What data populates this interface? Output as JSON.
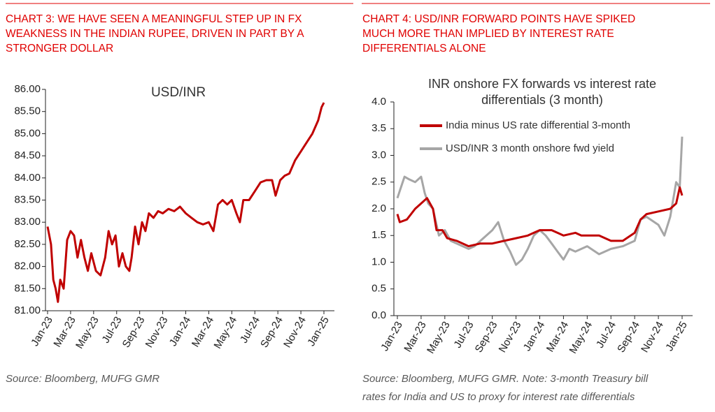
{
  "panels": [
    {
      "heading": [
        "CHART 3: WE HAVE SEEN A MEANINGFUL STEP UP IN FX",
        "WEAKNESS IN THE INDIAN RUPEE, DRIVEN IN PART BY A",
        "STRONGER DOLLAR"
      ],
      "source": [
        "Source: Bloomberg, MUFG GMR"
      ]
    },
    {
      "heading": [
        "CHART 4: USD/INR FORWARD POINTS HAVE SPIKED",
        "MUCH MORE THAN IMPLIED BY INTEREST RATE",
        "DIFFERENTIALS ALONE"
      ],
      "source": [
        "Source: Bloomberg, MUFG GMR.  Note: 3-month Treasury bill",
        "rates for India and US to proxy for interest rate differentials"
      ]
    }
  ],
  "chart_data": [
    {
      "type": "line",
      "title": [
        "USD/INR"
      ],
      "xlim": [
        0,
        24
      ],
      "ylim": [
        81,
        86
      ],
      "xticks": [
        {
          "value": 0,
          "label": "Jan-23"
        },
        {
          "value": 2,
          "label": "Mar-23"
        },
        {
          "value": 4,
          "label": "May-23"
        },
        {
          "value": 6,
          "label": "Jul-23"
        },
        {
          "value": 8,
          "label": "Sep-23"
        },
        {
          "value": 10,
          "label": "Nov-23"
        },
        {
          "value": 12,
          "label": "Jan-24"
        },
        {
          "value": 14,
          "label": "Mar-24"
        },
        {
          "value": 16,
          "label": "May-24"
        },
        {
          "value": 18,
          "label": "Jul-24"
        },
        {
          "value": 20,
          "label": "Sep-24"
        },
        {
          "value": 22,
          "label": "Nov-24"
        },
        {
          "value": 24,
          "label": "Jan-25"
        }
      ],
      "yticks": [
        {
          "value": 81,
          "label": "81.00"
        },
        {
          "value": 81.5,
          "label": "81.50"
        },
        {
          "value": 82,
          "label": "82.00"
        },
        {
          "value": 82.5,
          "label": "82.50"
        },
        {
          "value": 83,
          "label": "83.00"
        },
        {
          "value": 83.5,
          "label": "83.50"
        },
        {
          "value": 84,
          "label": "84.00"
        },
        {
          "value": 84.5,
          "label": "84.50"
        },
        {
          "value": 85,
          "label": "85.00"
        },
        {
          "value": 85.5,
          "label": "85.50"
        },
        {
          "value": 86,
          "label": "86.00"
        }
      ],
      "series": [
        {
          "color": "#c00000",
          "x": [
            0,
            0.3,
            0.5,
            0.7,
            0.9,
            1.1,
            1.4,
            1.7,
            2.0,
            2.3,
            2.6,
            2.9,
            3.2,
            3.5,
            3.8,
            4.2,
            4.6,
            5.0,
            5.3,
            5.6,
            5.9,
            6.2,
            6.5,
            6.8,
            7.1,
            7.3,
            7.6,
            7.9,
            8.2,
            8.5,
            8.8,
            9.2,
            9.6,
            10,
            10.5,
            11,
            11.5,
            12,
            12.5,
            13,
            13.5,
            14,
            14.4,
            14.8,
            15.2,
            15.6,
            16,
            16.4,
            16.7,
            17,
            17.5,
            18,
            18.5,
            19,
            19.5,
            19.8,
            20.2,
            20.6,
            21,
            21.5,
            22,
            22.5,
            23,
            23.5,
            23.8,
            24
          ],
          "values": [
            82.9,
            82.5,
            81.7,
            81.5,
            81.2,
            81.7,
            81.5,
            82.6,
            82.8,
            82.7,
            82.2,
            82.6,
            82.2,
            81.9,
            82.3,
            81.9,
            81.8,
            82.2,
            82.8,
            82.5,
            82.7,
            82.0,
            82.3,
            82.0,
            81.9,
            82.2,
            82.9,
            82.5,
            83.0,
            82.8,
            83.2,
            83.1,
            83.25,
            83.2,
            83.3,
            83.25,
            83.35,
            83.2,
            83.1,
            83.0,
            82.95,
            83.0,
            82.8,
            83.4,
            83.5,
            83.4,
            83.5,
            83.2,
            83.0,
            83.5,
            83.5,
            83.7,
            83.9,
            83.95,
            83.95,
            83.6,
            83.95,
            84.05,
            84.1,
            84.4,
            84.6,
            84.8,
            85.0,
            85.3,
            85.6,
            85.7
          ]
        }
      ]
    },
    {
      "type": "line",
      "title": [
        "INR onshore FX forwards vs interest rate",
        "differentials (3 month)"
      ],
      "xlim": [
        0,
        24
      ],
      "ylim": [
        0,
        4
      ],
      "xticks": [
        {
          "value": 0,
          "label": "Jan-23"
        },
        {
          "value": 2,
          "label": "Mar-23"
        },
        {
          "value": 4,
          "label": "May-23"
        },
        {
          "value": 6,
          "label": "Jul-23"
        },
        {
          "value": 8,
          "label": "Sep-23"
        },
        {
          "value": 10,
          "label": "Nov-23"
        },
        {
          "value": 12,
          "label": "Jan-24"
        },
        {
          "value": 14,
          "label": "Mar-24"
        },
        {
          "value": 16,
          "label": "May-24"
        },
        {
          "value": 18,
          "label": "Jul-24"
        },
        {
          "value": 20,
          "label": "Sep-24"
        },
        {
          "value": 22,
          "label": "Nov-24"
        },
        {
          "value": 24,
          "label": "Jan-25"
        }
      ],
      "yticks": [
        {
          "value": 0,
          "label": "0.0"
        },
        {
          "value": 0.5,
          "label": "0.5"
        },
        {
          "value": 1,
          "label": "1.0"
        },
        {
          "value": 1.5,
          "label": "1.5"
        },
        {
          "value": 2,
          "label": "2.0"
        },
        {
          "value": 2.5,
          "label": "2.5"
        },
        {
          "value": 3,
          "label": "3.0"
        },
        {
          "value": 3.5,
          "label": "3.5"
        },
        {
          "value": 4,
          "label": "4.0"
        }
      ],
      "series": [
        {
          "name": "USD/INR 3 month onshore fwd yield",
          "color": "#a6a6a6",
          "x": [
            0,
            0.3,
            0.6,
            1,
            1.5,
            2,
            2.3,
            2.6,
            3,
            3.5,
            4,
            4.5,
            5,
            6,
            6.5,
            7,
            8,
            8.5,
            9,
            9.5,
            10,
            10.5,
            11,
            11.5,
            12,
            12.5,
            13,
            13.5,
            14,
            14.5,
            15,
            16,
            17,
            18,
            19,
            20,
            20.5,
            21,
            22,
            22.5,
            23,
            23.5,
            23.8,
            24
          ],
          "values": [
            2.2,
            2.4,
            2.6,
            2.55,
            2.5,
            2.6,
            2.3,
            2.1,
            2.0,
            1.5,
            1.6,
            1.4,
            1.35,
            1.25,
            1.3,
            1.4,
            1.6,
            1.75,
            1.4,
            1.2,
            0.95,
            1.05,
            1.25,
            1.5,
            1.6,
            1.5,
            1.35,
            1.2,
            1.05,
            1.25,
            1.2,
            1.3,
            1.15,
            1.25,
            1.3,
            1.4,
            1.8,
            1.85,
            1.7,
            1.5,
            1.85,
            2.5,
            2.4,
            3.35
          ]
        },
        {
          "name": "India minus US rate differential 3-month",
          "color": "#c00000",
          "x": [
            0,
            0.2,
            0.8,
            1.5,
            2,
            2.5,
            3,
            3.3,
            3.8,
            4.2,
            5,
            5.5,
            6,
            7,
            8,
            9,
            10,
            11,
            11.5,
            12,
            12.5,
            13,
            13.5,
            14,
            15,
            15.5,
            16,
            17,
            18,
            19,
            20,
            20.5,
            21,
            22,
            23,
            23.5,
            23.8,
            24
          ],
          "values": [
            1.9,
            1.75,
            1.8,
            2.0,
            2.1,
            2.2,
            2.0,
            1.6,
            1.6,
            1.45,
            1.4,
            1.35,
            1.3,
            1.35,
            1.35,
            1.4,
            1.45,
            1.5,
            1.55,
            1.6,
            1.6,
            1.6,
            1.55,
            1.5,
            1.55,
            1.5,
            1.5,
            1.5,
            1.4,
            1.4,
            1.55,
            1.8,
            1.9,
            1.95,
            2.0,
            2.1,
            2.4,
            2.25
          ]
        }
      ]
    }
  ]
}
